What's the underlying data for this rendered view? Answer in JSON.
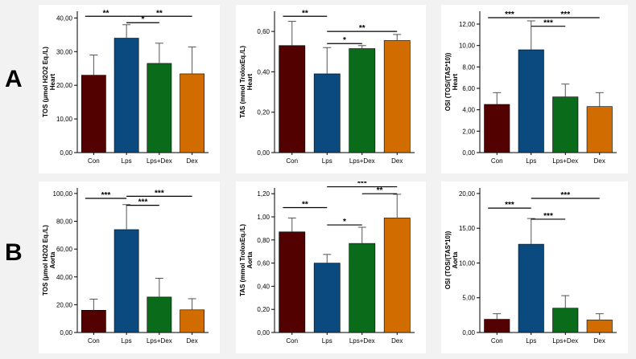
{
  "panel_labels": [
    "A",
    "B"
  ],
  "colors": {
    "Con": "#520000",
    "Lps": "#0b4a7e",
    "Lps+Dex": "#0a6b1b",
    "Dex": "#d06c00",
    "axis": "#000000",
    "error": "#555555"
  },
  "chart_data": [
    {
      "type": "bar",
      "panel": "A",
      "ylabel_line1": "TOS (μmol H2O2 Eq./L)",
      "ylabel_line2": "Heart",
      "categories": [
        "Con",
        "Lps",
        "Lps+Dex",
        "Dex"
      ],
      "values": [
        23,
        34,
        26.5,
        23.4
      ],
      "errors": [
        29,
        38,
        32.5,
        31.4
      ],
      "ylim": [
        0,
        42
      ],
      "yticks": [
        0,
        10,
        20,
        30,
        40
      ],
      "yticklabels": [
        "0,00",
        "10,00",
        "20,00",
        "30,00",
        "40,00"
      ],
      "significance": [
        {
          "from": 0,
          "to": 1,
          "label": "**",
          "y": 40.5
        },
        {
          "from": 1,
          "to": 2,
          "label": "*",
          "y": 38.6
        },
        {
          "from": 1,
          "to": 3,
          "label": "**",
          "y": 40.5
        }
      ]
    },
    {
      "type": "bar",
      "panel": "A",
      "ylabel_line1": "TAS (mmol TroloxEq./L)",
      "ylabel_line2": "Heart",
      "categories": [
        "Con",
        "Lps",
        "Lps+Dex",
        "Dex"
      ],
      "values": [
        0.53,
        0.39,
        0.515,
        0.555
      ],
      "errors": [
        0.65,
        0.52,
        0.53,
        0.585
      ],
      "ylim": [
        0,
        0.7
      ],
      "yticks": [
        0,
        0.2,
        0.4,
        0.6
      ],
      "yticklabels": [
        "0,00",
        "0,20",
        "0,40",
        "0,60"
      ],
      "significance": [
        {
          "from": 0,
          "to": 1,
          "label": "**",
          "y": 0.675
        },
        {
          "from": 1,
          "to": 2,
          "label": "*",
          "y": 0.54
        },
        {
          "from": 1,
          "to": 3,
          "label": "**",
          "y": 0.6
        }
      ]
    },
    {
      "type": "bar",
      "panel": "A",
      "ylabel_line1": "OSI (TOS/(TAS*10))",
      "ylabel_line2": "Heart",
      "categories": [
        "Con",
        "Lps",
        "Lps+Dex",
        "Dex"
      ],
      "values": [
        4.5,
        9.6,
        5.2,
        4.3
      ],
      "errors": [
        5.6,
        12.3,
        6.4,
        5.6
      ],
      "ylim": [
        0,
        13.2
      ],
      "yticks": [
        0,
        2,
        4,
        6,
        8,
        10,
        12
      ],
      "yticklabels": [
        "0,00",
        "2,00",
        "4,00",
        "6,00",
        "8,00",
        "10,00",
        "12,00"
      ],
      "significance": [
        {
          "from": 0,
          "to": 1,
          "label": "***",
          "y": 12.6
        },
        {
          "from": 1,
          "to": 2,
          "label": "***",
          "y": 11.8
        },
        {
          "from": 1,
          "to": 3,
          "label": "***",
          "y": 12.6
        }
      ]
    },
    {
      "type": "bar",
      "panel": "B",
      "ylabel_line1": "TOS (μmol H2O2 Eq./L)",
      "ylabel_line2": "Aorta",
      "categories": [
        "Con",
        "Lps",
        "Lps+Dex",
        "Dex"
      ],
      "values": [
        16,
        74,
        25.5,
        16.3
      ],
      "errors": [
        24,
        92,
        39,
        24.3
      ],
      "ylim": [
        0,
        104
      ],
      "yticks": [
        0,
        20,
        40,
        60,
        80,
        100
      ],
      "yticklabels": [
        "0,00",
        "20,00",
        "40,00",
        "60,00",
        "80,00",
        "100,00"
      ],
      "significance": [
        {
          "from": 0,
          "to": 1,
          "label": "***",
          "y": 96.5
        },
        {
          "from": 1,
          "to": 2,
          "label": "***",
          "y": 91.5
        },
        {
          "from": 1,
          "to": 3,
          "label": "***",
          "y": 98
        }
      ]
    },
    {
      "type": "bar",
      "panel": "B",
      "ylabel_line1": "TAS (mmol TroloxEq./L)",
      "ylabel_line2": "Aorta",
      "categories": [
        "Con",
        "Lps",
        "Lps+Dex",
        "Dex"
      ],
      "values": [
        0.87,
        0.6,
        0.77,
        0.99
      ],
      "errors": [
        0.99,
        0.675,
        0.91,
        1.195
      ],
      "ylim": [
        0,
        1.25
      ],
      "yticks": [
        0,
        0.2,
        0.4,
        0.6,
        0.8,
        1.0,
        1.2
      ],
      "yticklabels": [
        "0,00",
        "0,20",
        "0,40",
        "0,60",
        "0,80",
        "1,00",
        "1,20"
      ],
      "significance": [
        {
          "from": 0,
          "to": 1,
          "label": "**",
          "y": 1.08
        },
        {
          "from": 1,
          "to": 2,
          "label": "*",
          "y": 0.93
        },
        {
          "from": 1,
          "to": 3,
          "label": "***",
          "y": 1.26
        },
        {
          "from": 2,
          "to": 3,
          "label": "**",
          "y": 1.2
        }
      ]
    },
    {
      "type": "bar",
      "panel": "B",
      "ylabel_line1": "OSI (TOS/(TAS*10))",
      "ylabel_line2": "Aorta",
      "categories": [
        "Con",
        "Lps",
        "Lps+Dex",
        "Dex"
      ],
      "values": [
        1.9,
        12.7,
        3.5,
        1.8
      ],
      "errors": [
        2.7,
        16.4,
        5.3,
        2.7
      ],
      "ylim": [
        0,
        20.8
      ],
      "yticks": [
        0,
        5,
        10,
        15,
        20
      ],
      "yticklabels": [
        "0,00",
        "5,00",
        "10,00",
        "15,00",
        "20,00"
      ],
      "significance": [
        {
          "from": 0,
          "to": 1,
          "label": "***",
          "y": 17.9
        },
        {
          "from": 1,
          "to": 2,
          "label": "***",
          "y": 16.3
        },
        {
          "from": 1,
          "to": 3,
          "label": "***",
          "y": 19.3
        }
      ]
    }
  ]
}
